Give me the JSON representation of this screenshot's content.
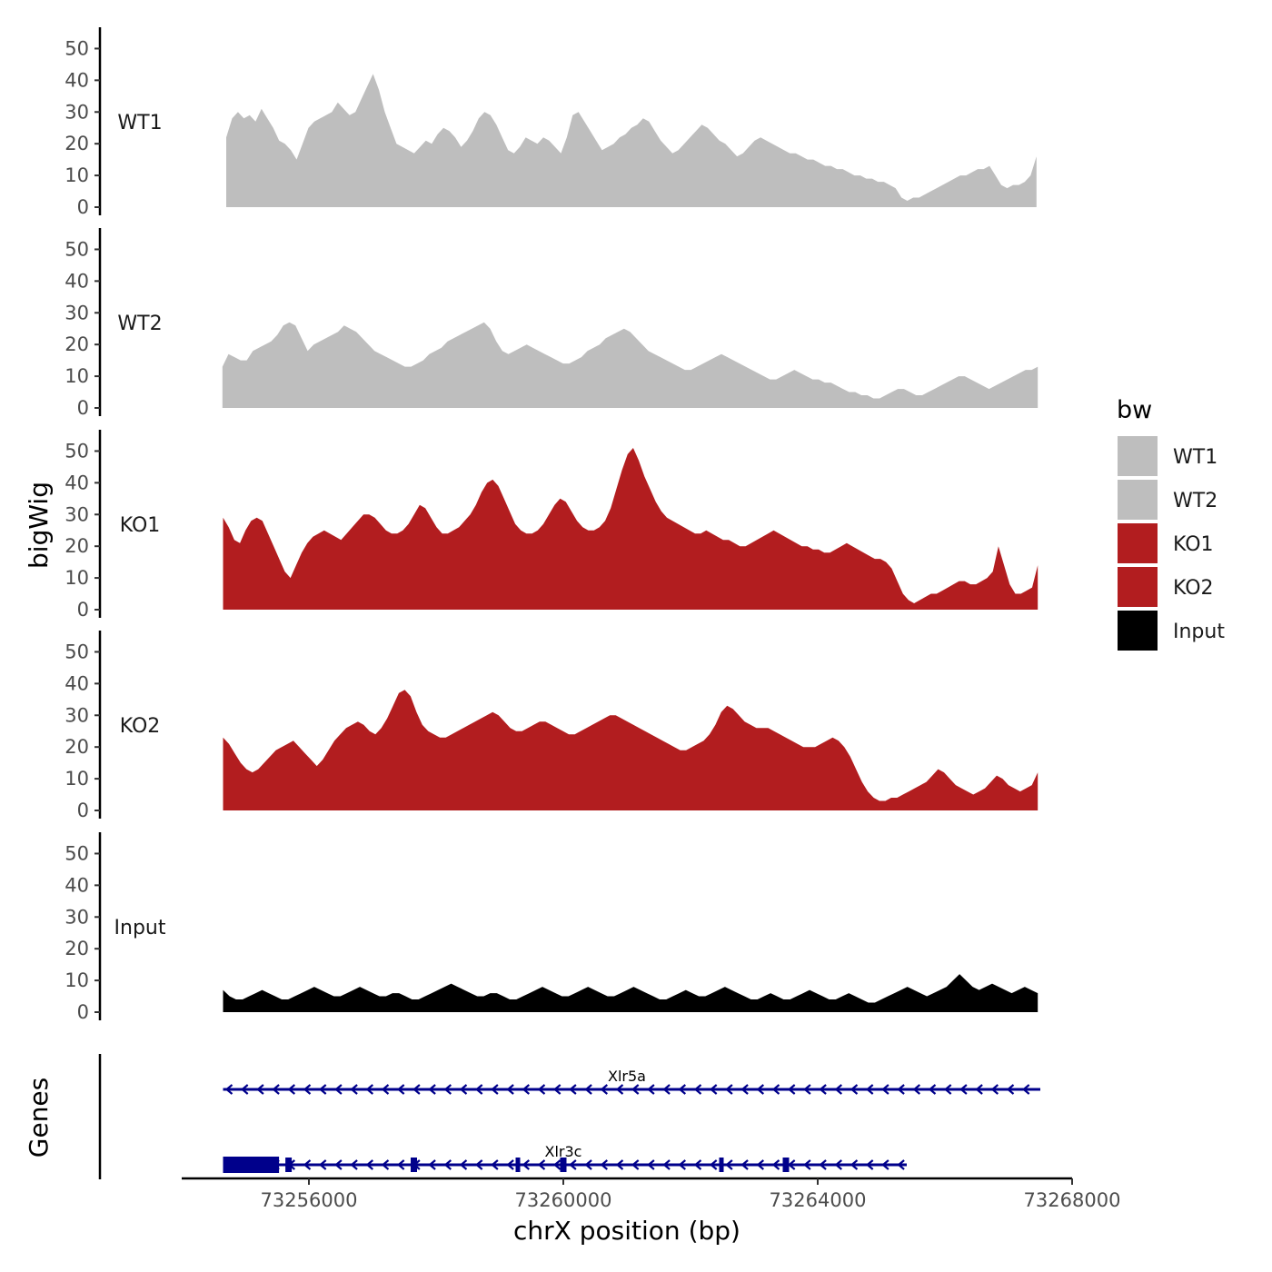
{
  "chart_data": {
    "type": "area",
    "title": "",
    "ylabel": "bigWig",
    "xlabel": "chrX position (bp)",
    "xlim": [
      73254000,
      73268000
    ],
    "ylim": [
      0,
      55
    ],
    "y_ticks": [
      "0",
      "10",
      "20",
      "30",
      "40",
      "50"
    ],
    "x_ticks": [
      {
        "value": 73256000,
        "label": "73256000"
      },
      {
        "value": 73260000,
        "label": "73260000"
      },
      {
        "value": 73264000,
        "label": "73264000"
      },
      {
        "value": 73268000,
        "label": "73268000"
      }
    ],
    "series": [
      {
        "name": "WT1",
        "color": "#bebebe",
        "x_start": 73254700,
        "x_end": 73267440,
        "values": [
          22,
          28,
          30,
          28,
          29,
          27,
          31,
          28,
          25,
          21,
          20,
          18,
          15,
          20,
          25,
          27,
          28,
          29,
          30,
          33,
          31,
          29,
          30,
          34,
          38,
          42,
          37,
          30,
          25,
          20,
          19,
          18,
          17,
          19,
          21,
          20,
          23,
          25,
          24,
          22,
          19,
          21,
          24,
          28,
          30,
          29,
          26,
          22,
          18,
          17,
          19,
          22,
          21,
          20,
          22,
          21,
          19,
          17,
          22,
          29,
          30,
          27,
          24,
          21,
          18,
          19,
          20,
          22,
          23,
          25,
          26,
          28,
          27,
          24,
          21,
          19,
          17,
          18,
          20,
          22,
          24,
          26,
          25,
          23,
          21,
          20,
          18,
          16,
          17,
          19,
          21,
          22,
          21,
          20,
          19,
          18,
          17,
          17,
          16,
          15,
          15,
          14,
          13,
          13,
          12,
          12,
          11,
          10,
          10,
          9,
          9,
          8,
          8,
          7,
          6,
          3,
          2,
          3,
          3,
          4,
          5,
          6,
          7,
          8,
          9,
          10,
          10,
          11,
          12,
          12,
          13,
          10,
          7,
          6,
          7,
          7,
          8,
          10,
          16
        ]
      },
      {
        "name": "WT2",
        "color": "#bebebe",
        "x_start": 73254640,
        "x_end": 73267460,
        "values": [
          13,
          17,
          16,
          15,
          15,
          18,
          19,
          20,
          21,
          23,
          26,
          27,
          26,
          22,
          18,
          20,
          21,
          22,
          23,
          24,
          26,
          25,
          24,
          22,
          20,
          18,
          17,
          16,
          15,
          14,
          13,
          13,
          14,
          15,
          17,
          18,
          19,
          21,
          22,
          23,
          24,
          25,
          26,
          27,
          25,
          21,
          18,
          17,
          18,
          19,
          20,
          19,
          18,
          17,
          16,
          15,
          14,
          14,
          15,
          16,
          18,
          19,
          20,
          22,
          23,
          24,
          25,
          24,
          22,
          20,
          18,
          17,
          16,
          15,
          14,
          13,
          12,
          12,
          13,
          14,
          15,
          16,
          17,
          16,
          15,
          14,
          13,
          12,
          11,
          10,
          9,
          9,
          10,
          11,
          12,
          11,
          10,
          9,
          9,
          8,
          8,
          7,
          6,
          5,
          5,
          4,
          4,
          3,
          3,
          4,
          5,
          6,
          6,
          5,
          4,
          4,
          5,
          6,
          7,
          8,
          9,
          10,
          10,
          9,
          8,
          7,
          6,
          7,
          8,
          9,
          10,
          11,
          12,
          12,
          13
        ]
      },
      {
        "name": "KO1",
        "color": "#b21d1f",
        "x_start": 73254650,
        "x_end": 73267460,
        "values": [
          29,
          26,
          22,
          21,
          25,
          28,
          29,
          28,
          24,
          20,
          16,
          12,
          10,
          14,
          18,
          21,
          23,
          24,
          25,
          24,
          23,
          22,
          24,
          26,
          28,
          30,
          30,
          29,
          27,
          25,
          24,
          24,
          25,
          27,
          30,
          33,
          32,
          29,
          26,
          24,
          24,
          25,
          26,
          28,
          30,
          33,
          37,
          40,
          41,
          39,
          35,
          31,
          27,
          25,
          24,
          24,
          25,
          27,
          30,
          33,
          35,
          34,
          31,
          28,
          26,
          25,
          25,
          26,
          28,
          32,
          38,
          44,
          49,
          51,
          47,
          42,
          38,
          34,
          31,
          29,
          28,
          27,
          26,
          25,
          24,
          24,
          25,
          24,
          23,
          22,
          22,
          21,
          20,
          20,
          21,
          22,
          23,
          24,
          25,
          24,
          23,
          22,
          21,
          20,
          20,
          19,
          19,
          18,
          18,
          19,
          20,
          21,
          20,
          19,
          18,
          17,
          16,
          16,
          15,
          13,
          9,
          5,
          3,
          2,
          3,
          4,
          5,
          5,
          6,
          7,
          8,
          9,
          9,
          8,
          8,
          9,
          10,
          12,
          20,
          14,
          8,
          5,
          5,
          6,
          7,
          14
        ]
      },
      {
        "name": "KO2",
        "color": "#b21d1f",
        "x_start": 73254650,
        "x_end": 73267460,
        "values": [
          23,
          21,
          18,
          15,
          13,
          12,
          13,
          15,
          17,
          19,
          20,
          21,
          22,
          20,
          18,
          16,
          14,
          16,
          19,
          22,
          24,
          26,
          27,
          28,
          27,
          25,
          24,
          26,
          29,
          33,
          37,
          38,
          36,
          31,
          27,
          25,
          24,
          23,
          23,
          24,
          25,
          26,
          27,
          28,
          29,
          30,
          31,
          30,
          28,
          26,
          25,
          25,
          26,
          27,
          28,
          28,
          27,
          26,
          25,
          24,
          24,
          25,
          26,
          27,
          28,
          29,
          30,
          30,
          29,
          28,
          27,
          26,
          25,
          24,
          23,
          22,
          21,
          20,
          19,
          19,
          20,
          21,
          22,
          24,
          27,
          31,
          33,
          32,
          30,
          28,
          27,
          26,
          26,
          26,
          25,
          24,
          23,
          22,
          21,
          20,
          20,
          20,
          21,
          22,
          23,
          22,
          20,
          17,
          13,
          9,
          6,
          4,
          3,
          3,
          4,
          4,
          5,
          6,
          7,
          8,
          9,
          11,
          13,
          12,
          10,
          8,
          7,
          6,
          5,
          6,
          7,
          9,
          11,
          10,
          8,
          7,
          6,
          7,
          8,
          12
        ]
      },
      {
        "name": "Input",
        "color": "#000000",
        "x_start": 73254650,
        "x_end": 73267460,
        "values": [
          7,
          5,
          4,
          4,
          5,
          6,
          7,
          6,
          5,
          4,
          4,
          5,
          6,
          7,
          8,
          7,
          6,
          5,
          5,
          6,
          7,
          8,
          7,
          6,
          5,
          5,
          6,
          6,
          5,
          4,
          4,
          5,
          6,
          7,
          8,
          9,
          8,
          7,
          6,
          5,
          5,
          6,
          6,
          5,
          4,
          4,
          5,
          6,
          7,
          8,
          7,
          6,
          5,
          5,
          6,
          7,
          8,
          7,
          6,
          5,
          5,
          6,
          7,
          8,
          7,
          6,
          5,
          4,
          4,
          5,
          6,
          7,
          6,
          5,
          5,
          6,
          7,
          8,
          7,
          6,
          5,
          4,
          4,
          5,
          6,
          5,
          4,
          4,
          5,
          6,
          7,
          6,
          5,
          4,
          4,
          5,
          6,
          5,
          4,
          3,
          3,
          4,
          5,
          6,
          7,
          8,
          7,
          6,
          5,
          6,
          7,
          8,
          10,
          12,
          10,
          8,
          7,
          8,
          9,
          8,
          7,
          6,
          7,
          8,
          7,
          6
        ]
      }
    ],
    "legend": {
      "title": "bw",
      "placement": "right",
      "entries": [
        {
          "label": "WT1",
          "color": "#bebebe"
        },
        {
          "label": "WT2",
          "color": "#bebebe"
        },
        {
          "label": "KO1",
          "color": "#b21d1f"
        },
        {
          "label": "KO2",
          "color": "#b21d1f"
        },
        {
          "label": "Input",
          "color": "#000000"
        }
      ]
    },
    "genes_track": {
      "label": "Genes",
      "color": "#00008b",
      "genes": [
        {
          "name": "Xlr5a",
          "strand": "-",
          "start": 73254650,
          "end": 73267500,
          "row": 1,
          "exons": []
        },
        {
          "name": "Xlr3c",
          "strand": "-",
          "start": 73254650,
          "end": 73265400,
          "row": 2,
          "exons": [
            [
              73254650,
              73255530
            ],
            [
              73255630,
              73255730
            ],
            [
              73257600,
              73257700
            ],
            [
              73259250,
              73259300
            ],
            [
              73259950,
              73260050
            ],
            [
              73262450,
              73262500
            ],
            [
              73263450,
              73263550
            ]
          ]
        }
      ]
    }
  }
}
